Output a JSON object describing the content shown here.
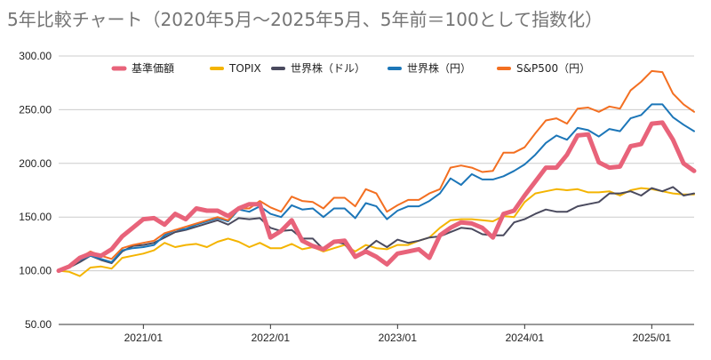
{
  "chart_data": {
    "type": "line",
    "title": "5年比較チャート（2020年5月～2025年5月、5年前＝100として指数化）",
    "xlabel": "",
    "ylabel": "",
    "x_ticks": [
      "2021/01",
      "2022/01",
      "2023/01",
      "2024/01",
      "2025/01"
    ],
    "x_tick_index": [
      8,
      20,
      32,
      44,
      56
    ],
    "y_ticks": [
      "50.00",
      "100.00",
      "150.00",
      "200.00",
      "250.00",
      "300.00"
    ],
    "ylim": [
      50,
      300
    ],
    "grid": "horizontal",
    "legend_position": "top",
    "x": [
      "2020/05",
      "2020/06",
      "2020/07",
      "2020/08",
      "2020/09",
      "2020/10",
      "2020/11",
      "2020/12",
      "2021/01",
      "2021/02",
      "2021/03",
      "2021/04",
      "2021/05",
      "2021/06",
      "2021/07",
      "2021/08",
      "2021/09",
      "2021/10",
      "2021/11",
      "2021/12",
      "2022/01",
      "2022/02",
      "2022/03",
      "2022/04",
      "2022/05",
      "2022/06",
      "2022/07",
      "2022/08",
      "2022/09",
      "2022/10",
      "2022/11",
      "2022/12",
      "2023/01",
      "2023/02",
      "2023/03",
      "2023/04",
      "2023/05",
      "2023/06",
      "2023/07",
      "2023/08",
      "2023/09",
      "2023/10",
      "2023/11",
      "2023/12",
      "2024/01",
      "2024/02",
      "2024/03",
      "2024/04",
      "2024/05",
      "2024/06",
      "2024/07",
      "2024/08",
      "2024/09",
      "2024/10",
      "2024/11",
      "2024/12",
      "2025/01",
      "2025/02",
      "2025/03",
      "2025/04",
      "2025/05"
    ],
    "series": [
      {
        "name": "基準価額",
        "color": "#e8637a",
        "width": 5,
        "values": [
          100,
          104,
          112,
          116,
          114,
          120,
          132,
          140,
          148,
          149,
          143,
          153,
          148,
          158,
          156,
          156,
          151,
          158,
          162,
          162,
          131,
          137,
          147,
          128,
          123,
          120,
          127,
          128,
          113,
          118,
          113,
          106,
          116,
          118,
          120,
          112,
          133,
          140,
          145,
          144,
          140,
          131,
          153,
          156,
          170,
          183,
          196,
          196,
          208,
          226,
          227,
          201,
          196,
          197,
          216,
          218,
          237,
          238,
          222,
          200,
          193
        ]
      },
      {
        "name": "TOPIX",
        "color": "#f4b400",
        "width": 2,
        "values": [
          100,
          99,
          95,
          103,
          104,
          102,
          112,
          114,
          116,
          119,
          126,
          122,
          124,
          125,
          122,
          127,
          130,
          127,
          122,
          126,
          121,
          121,
          125,
          120,
          122,
          118,
          121,
          124,
          118,
          124,
          121,
          120,
          124,
          124,
          128,
          131,
          140,
          147,
          148,
          148,
          147,
          146,
          151,
          150,
          164,
          172,
          174,
          176,
          175,
          176,
          173,
          173,
          174,
          170,
          175,
          177,
          176,
          174,
          172,
          171,
          171
        ]
      },
      {
        "name": "世界株（ドル）",
        "color": "#4a4a5e",
        "width": 2,
        "values": [
          100,
          103,
          108,
          114,
          110,
          107,
          118,
          123,
          124,
          126,
          131,
          136,
          138,
          141,
          144,
          147,
          143,
          149,
          148,
          149,
          140,
          137,
          138,
          130,
          130,
          120,
          127,
          125,
          112,
          120,
          128,
          122,
          129,
          126,
          128,
          131,
          132,
          136,
          140,
          139,
          134,
          133,
          133,
          145,
          148,
          153,
          157,
          155,
          155,
          160,
          162,
          164,
          172,
          172,
          174,
          170,
          177,
          174,
          178,
          170,
          172
        ]
      },
      {
        "name": "世界株（円）",
        "color": "#1c76b8",
        "width": 2,
        "values": [
          100,
          104,
          110,
          114,
          111,
          108,
          119,
          121,
          122,
          124,
          133,
          138,
          139,
          143,
          146,
          149,
          146,
          157,
          155,
          160,
          153,
          150,
          161,
          157,
          158,
          150,
          158,
          158,
          149,
          163,
          160,
          148,
          156,
          160,
          160,
          165,
          172,
          186,
          180,
          190,
          185,
          185,
          188,
          193,
          199,
          208,
          219,
          226,
          222,
          233,
          231,
          225,
          232,
          230,
          242,
          245,
          255,
          255,
          243,
          236,
          230
        ]
      },
      {
        "name": "S&P500（円）",
        "color": "#f36f21",
        "width": 2,
        "values": [
          100,
          105,
          112,
          118,
          114,
          111,
          121,
          124,
          126,
          128,
          135,
          138,
          141,
          144,
          147,
          150,
          147,
          158,
          158,
          165,
          159,
          155,
          169,
          165,
          164,
          158,
          168,
          168,
          160,
          176,
          172,
          155,
          161,
          166,
          166,
          172,
          176,
          196,
          198,
          196,
          192,
          193,
          210,
          210,
          215,
          228,
          240,
          242,
          237,
          251,
          252,
          248,
          253,
          251,
          268,
          276,
          286,
          285,
          265,
          255,
          248
        ]
      }
    ]
  }
}
